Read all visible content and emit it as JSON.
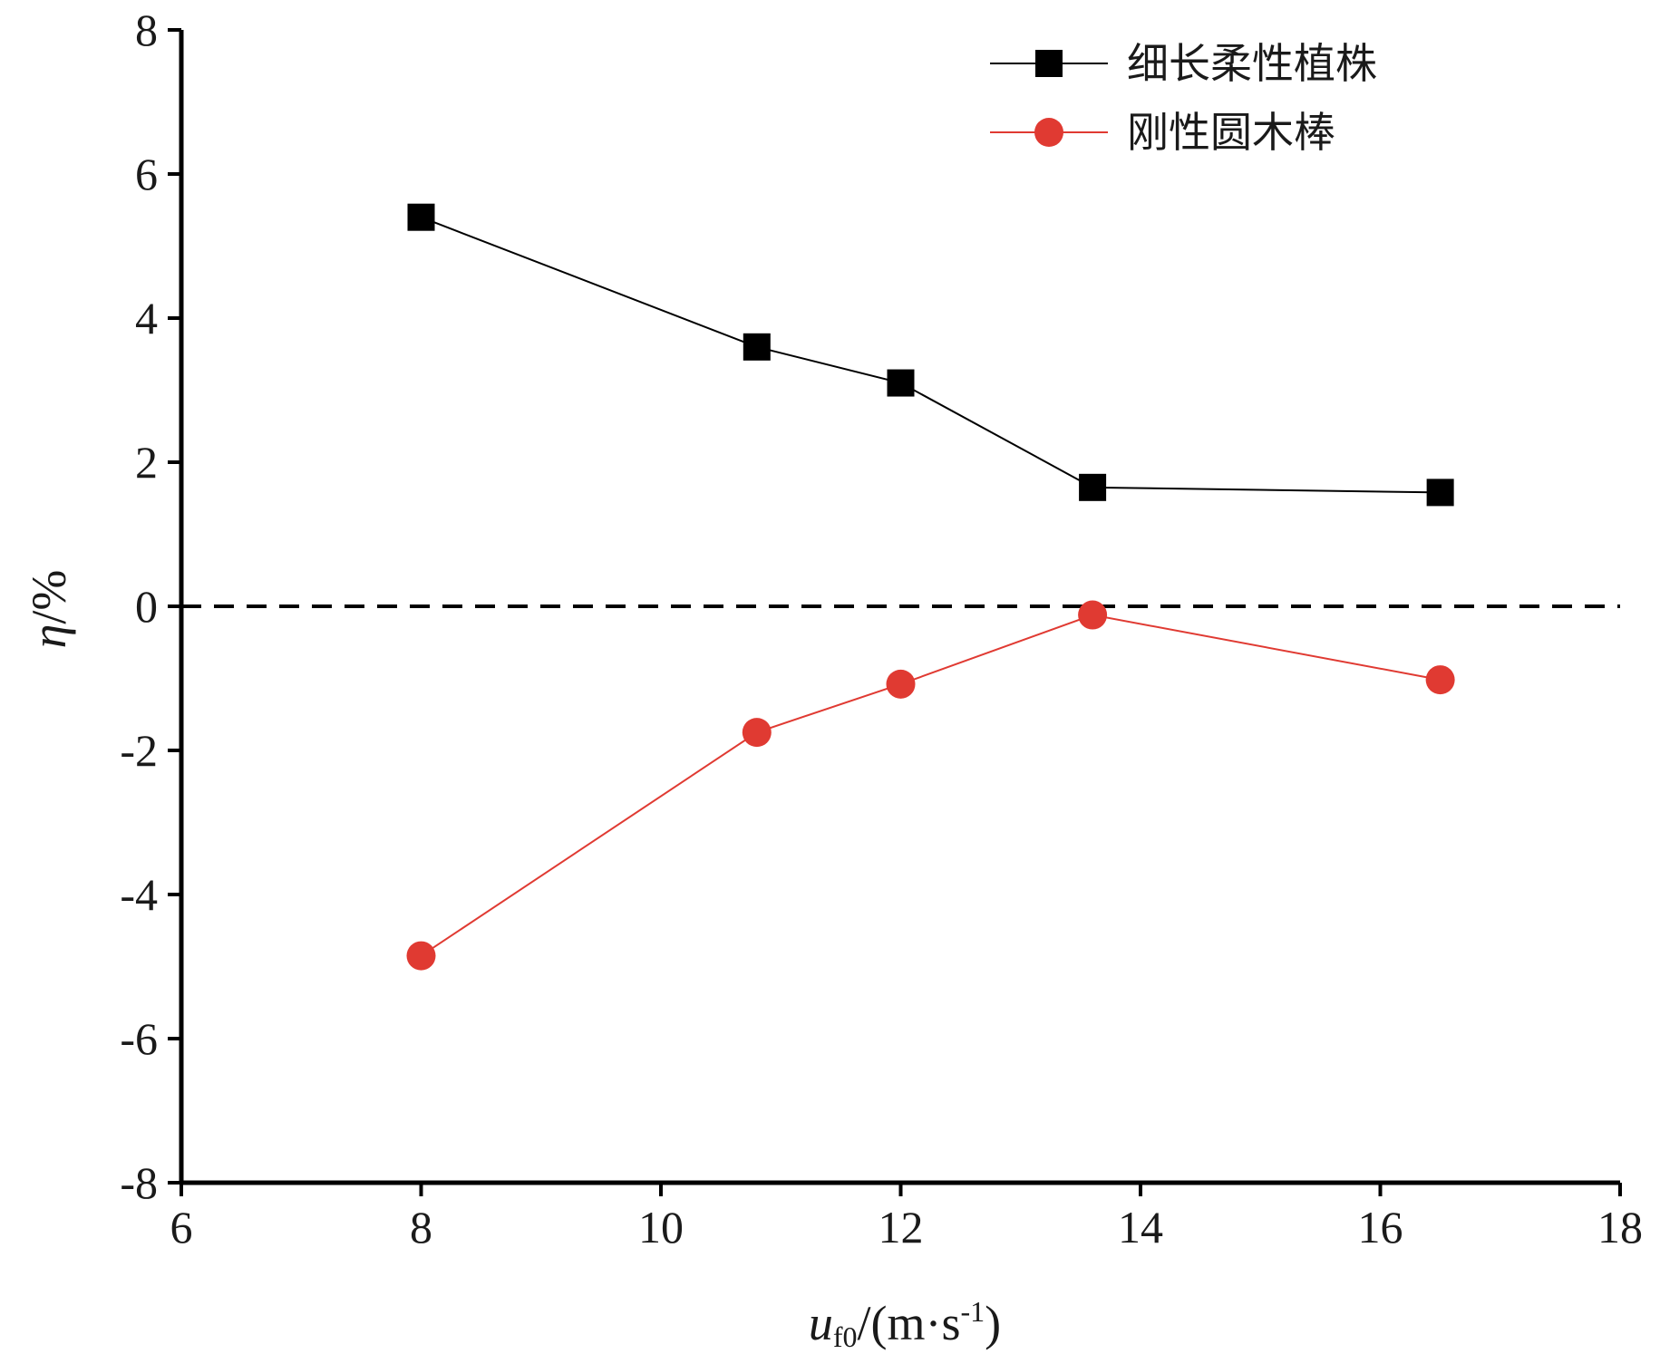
{
  "chart_data": {
    "type": "line",
    "xlabel": {
      "var": "u",
      "sub": "f0",
      "unit_prefix": "/(m·s",
      "sup": "-1",
      "unit_suffix": ")"
    },
    "ylabel": {
      "var": "η",
      "unit": "/%"
    },
    "xlim": [
      6,
      18
    ],
    "ylim": [
      -8,
      8
    ],
    "xticks": [
      6,
      8,
      10,
      12,
      14,
      16,
      18
    ],
    "yticks": [
      -8,
      -6,
      -4,
      -2,
      0,
      2,
      4,
      6,
      8
    ],
    "reference_line": {
      "y": 0,
      "style": "dashed",
      "color": "#000000"
    },
    "grid": false,
    "legend": {
      "position": "top-right"
    },
    "series": [
      {
        "name": "细长柔性植株",
        "marker": "square",
        "color": "#000000",
        "x": [
          8,
          10.8,
          12,
          13.6,
          16.5
        ],
        "y": [
          5.4,
          3.6,
          3.1,
          1.65,
          1.58
        ]
      },
      {
        "name": "刚性圆木棒",
        "marker": "circle",
        "color": "#e03a32",
        "x": [
          8,
          10.8,
          12,
          13.6,
          16.5
        ],
        "y": [
          -4.85,
          -1.75,
          -1.08,
          -0.12,
          -1.02
        ]
      }
    ]
  }
}
